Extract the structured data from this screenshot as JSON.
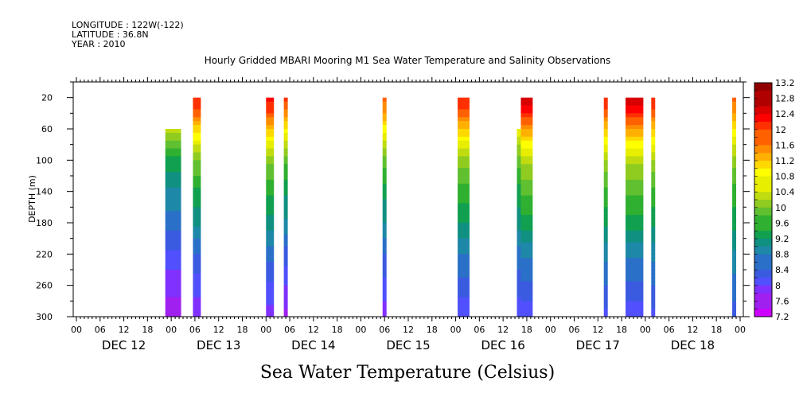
{
  "header": {
    "longitude": "LONGITUDE : 122W(-122)",
    "latitude": "LATITUDE : 36.8N",
    "year": "YEAR : 2010"
  },
  "chart_data": {
    "type": "heatmap",
    "title": "Hourly Gridded MBARI Mooring M1 Sea Water Temperature and Salinity Observations",
    "xlabel": "Sea Water Temperature (Celsius)",
    "ylabel": "DEPTH (m)",
    "x_hours_range": [
      0,
      168
    ],
    "x_hour_tick_labels": [
      "00",
      "06",
      "12",
      "18",
      "00",
      "06",
      "12",
      "18",
      "00",
      "06",
      "12",
      "18",
      "00",
      "06",
      "12",
      "18",
      "00",
      "06",
      "12",
      "18",
      "00",
      "06",
      "12",
      "18",
      "00",
      "06",
      "12",
      "18",
      "00"
    ],
    "day_labels": [
      "DEC 12",
      "DEC 13",
      "DEC 14",
      "DEC 15",
      "DEC 16",
      "DEC 17",
      "DEC 18"
    ],
    "ylim": [
      300,
      0
    ],
    "y_ticks": [
      20,
      60,
      100,
      140,
      180,
      220,
      260,
      300
    ],
    "colorbar": {
      "min": 7.2,
      "max": 13.2,
      "step": 0.2,
      "tick_labels": [
        "13.2",
        "12.8",
        "12.4",
        "12",
        "11.6",
        "11.2",
        "10.8",
        "10.4",
        "10",
        "9.6",
        "9.2",
        "8.8",
        "8.4",
        "8",
        "7.6",
        "7.2"
      ]
    },
    "temperature_profile": {
      "depths": [
        20,
        40,
        60,
        80,
        100,
        140,
        180,
        220,
        260,
        300
      ],
      "temps": [
        12.6,
        12.2,
        11.4,
        10.8,
        10.2,
        9.6,
        9.2,
        8.6,
        8.2,
        7.8
      ]
    },
    "observations": [
      {
        "start_hour": 22.5,
        "end_hour": 26.5,
        "top_depth": 60,
        "surface_temp": 11.2,
        "deep_temp": 7.5
      },
      {
        "start_hour": 29.5,
        "end_hour": 31.5,
        "top_depth": 20,
        "surface_temp": 12.2,
        "deep_temp": 7.7
      },
      {
        "start_hour": 48.0,
        "end_hour": 50.0,
        "top_depth": 20,
        "surface_temp": 12.3,
        "deep_temp": 7.8
      },
      {
        "start_hour": 52.5,
        "end_hour": 53.5,
        "top_depth": 20,
        "surface_temp": 12.0,
        "deep_temp": 7.6
      },
      {
        "start_hour": 77.5,
        "end_hour": 78.5,
        "top_depth": 20,
        "surface_temp": 11.8,
        "deep_temp": 7.8
      },
      {
        "start_hour": 96.5,
        "end_hour": 99.5,
        "top_depth": 20,
        "surface_temp": 12.2,
        "deep_temp": 8.0
      },
      {
        "start_hour": 111.5,
        "end_hour": 112.5,
        "top_depth": 60,
        "surface_temp": 11.6,
        "deep_temp": 8.0
      },
      {
        "start_hour": 112.5,
        "end_hour": 115.5,
        "top_depth": 20,
        "surface_temp": 12.6,
        "deep_temp": 8.0
      },
      {
        "start_hour": 133.5,
        "end_hour": 134.5,
        "top_depth": 20,
        "surface_temp": 12.2,
        "deep_temp": 8.1
      },
      {
        "start_hour": 139.0,
        "end_hour": 143.5,
        "top_depth": 20,
        "surface_temp": 12.6,
        "deep_temp": 8.0
      },
      {
        "start_hour": 145.5,
        "end_hour": 146.5,
        "top_depth": 20,
        "surface_temp": 12.2,
        "deep_temp": 8.1
      },
      {
        "start_hour": 166.0,
        "end_hour": 167.0,
        "top_depth": 20,
        "surface_temp": 11.8,
        "deep_temp": 8.3
      }
    ],
    "colors": {
      "palette": [
        "#cc00ff",
        "#a020f0",
        "#8030ff",
        "#5050ff",
        "#3a5ae0",
        "#2a70c8",
        "#1e88a8",
        "#109080",
        "#10a050",
        "#30b030",
        "#60c030",
        "#90cc20",
        "#c0dc10",
        "#e8ee00",
        "#ffff00",
        "#ffd800",
        "#ffb000",
        "#ff8c00",
        "#ff6000",
        "#ff3000",
        "#ff0000",
        "#d80000",
        "#b00000",
        "#900000"
      ]
    }
  }
}
